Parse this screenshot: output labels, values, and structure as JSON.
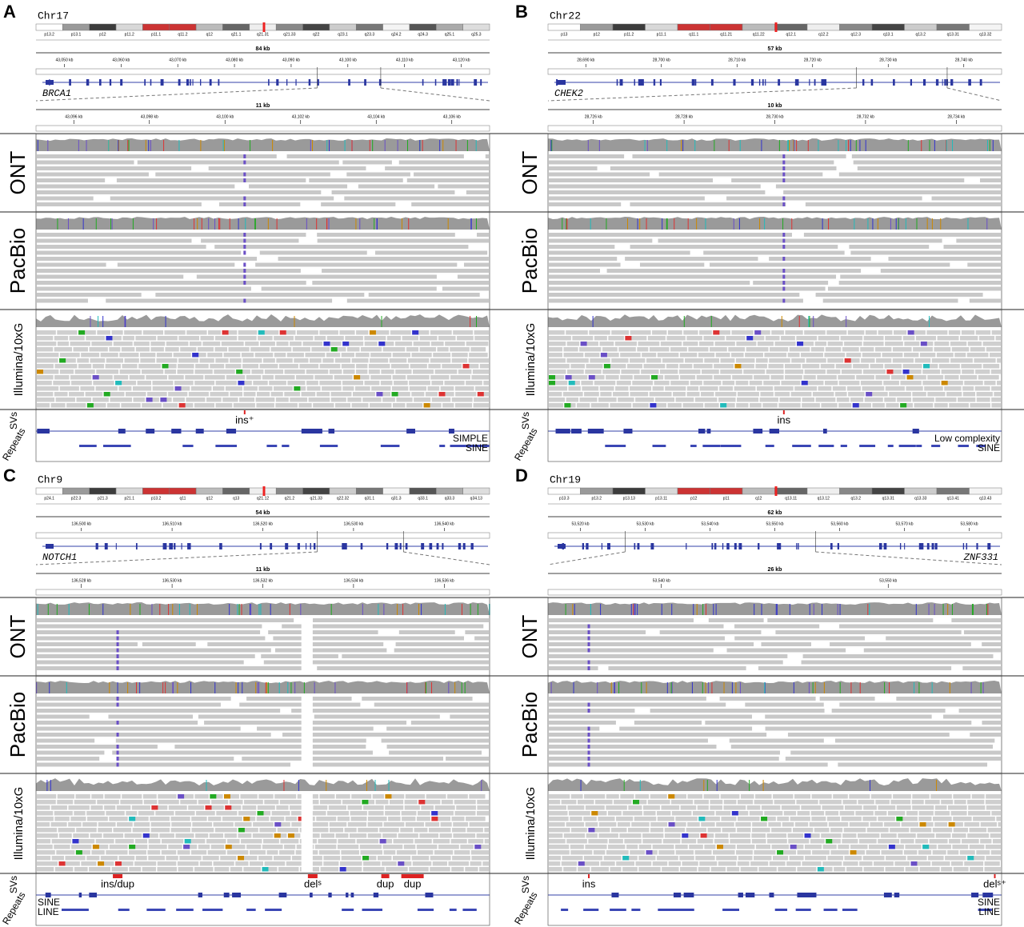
{
  "panels": [
    {
      "letter": "A",
      "chromosome": "Chr17",
      "bands": [
        "p13.2",
        "p13.1",
        "p12",
        "p11.2",
        "p11.1",
        "q11.2",
        "q12",
        "q21.1",
        "q21.31",
        "q21.33",
        "q22",
        "q23.1",
        "q23.3",
        "q24.2",
        "q24.3",
        "q25.1",
        "q25.3"
      ],
      "overview": {
        "span": "84 kb",
        "ticks": [
          "43,050 kb",
          "43,060 kb",
          "43,070 kb",
          "43,080 kb",
          "43,090 kb",
          "43,100 kb",
          "43,110 kb",
          "43,120 kb"
        ]
      },
      "gene": "BRCA1",
      "zoom": {
        "span": "11 kb",
        "ticks": [
          "43,096 kb",
          "43,098 kb",
          "43,100 kb",
          "43,102 kb",
          "43,104 kb",
          "43,106 kb"
        ]
      },
      "tracks": [
        "ONT",
        "PacBio",
        "Illumina/10xG"
      ],
      "sv_label": "SVs",
      "repeats_label": "Repeats",
      "svs": [
        "ins⁺"
      ],
      "repeat_classes": [
        "SIMPLE",
        "SINE"
      ]
    },
    {
      "letter": "B",
      "chromosome": "Chr22",
      "bands": [
        "p13",
        "p12",
        "p11.2",
        "p11.1",
        "q11.1",
        "q11.21",
        "q11.22",
        "q12.1",
        "q12.2",
        "q12.3",
        "q13.1",
        "q13.2",
        "q13.31",
        "q13.32"
      ],
      "overview": {
        "span": "57 kb",
        "ticks": [
          "28,690 kb",
          "28,700 kb",
          "28,710 kb",
          "28,720 kb",
          "28,730 kb",
          "28,740 kb"
        ]
      },
      "gene": "CHEK2",
      "zoom": {
        "span": "10 kb",
        "ticks": [
          "28,726 kb",
          "28,728 kb",
          "28,730 kb",
          "28,732 kb",
          "28,734 kb"
        ]
      },
      "tracks": [
        "ONT",
        "PacBio",
        "Illumina/10xG"
      ],
      "sv_label": "SVs",
      "repeats_label": "Repeats",
      "svs": [
        "ins"
      ],
      "repeat_classes": [
        "Low complexity",
        "SINE"
      ]
    },
    {
      "letter": "C",
      "chromosome": "Chr9",
      "bands": [
        "p24.1",
        "p22.3",
        "p21.3",
        "p21.1",
        "p13.2",
        "q11",
        "q12",
        "q13",
        "q21.12",
        "q21.2",
        "q21.33",
        "q22.32",
        "q31.1",
        "q31.3",
        "q33.1",
        "q33.3",
        "q34.13"
      ],
      "overview": {
        "span": "54 kb",
        "ticks": [
          "136,500 kb",
          "136,510 kb",
          "136,520 kb",
          "136,530 kb",
          "136,540 kb"
        ]
      },
      "gene": "NOTCH1",
      "zoom": {
        "span": "11 kb",
        "ticks": [
          "136,528 kb",
          "136,530 kb",
          "136,532 kb",
          "136,534 kb",
          "136,536 kb"
        ]
      },
      "tracks": [
        "ONT",
        "PacBio",
        "Illumina/10xG"
      ],
      "sv_label": "SVs",
      "repeats_label": "Repeats",
      "svs": [
        "ins/dup",
        "delˢ",
        "dup",
        "dup"
      ],
      "repeat_classes": [
        "SINE",
        "LINE"
      ]
    },
    {
      "letter": "D",
      "chromosome": "Chr19",
      "bands": [
        "p13.3",
        "p13.2",
        "p13.13",
        "p13.11",
        "p12",
        "p11",
        "q12",
        "q13.11",
        "q13.12",
        "q13.2",
        "q13.31",
        "q13.33",
        "q13.41",
        "q13.43"
      ],
      "overview": {
        "span": "62 kb",
        "ticks": [
          "53,520 kb",
          "53,530 kb",
          "53,540 kb",
          "53,550 kb",
          "53,560 kb",
          "53,570 kb",
          "53,580 kb"
        ]
      },
      "gene": "ZNF331",
      "zoom": {
        "span": "26 kb",
        "ticks": [
          "53,540 kb",
          "53,550 kb"
        ]
      },
      "tracks": [
        "ONT",
        "PacBio",
        "Illumina/10xG"
      ],
      "sv_label": "SVs",
      "repeats_label": "Repeats",
      "svs": [
        "ins",
        "delˢ⁺"
      ],
      "repeat_classes": [
        "SINE",
        "LINE"
      ]
    }
  ]
}
